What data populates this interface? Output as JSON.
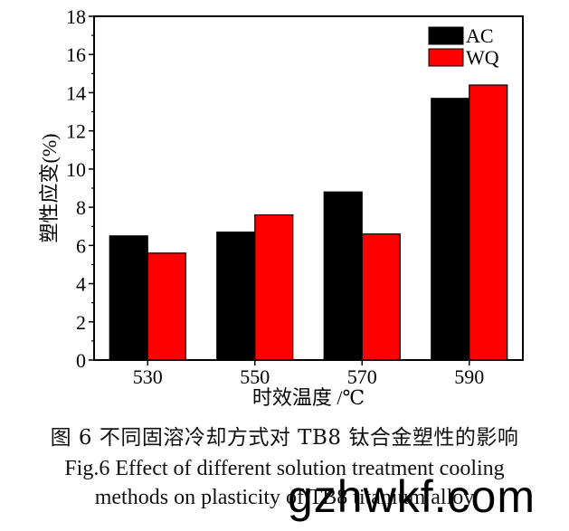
{
  "chart_data": {
    "type": "bar",
    "categories": [
      "530",
      "550",
      "570",
      "590"
    ],
    "series": [
      {
        "name": "AC",
        "values": [
          6.5,
          6.7,
          8.8,
          13.7
        ]
      },
      {
        "name": "WQ",
        "values": [
          5.6,
          7.6,
          6.6,
          14.4
        ]
      }
    ],
    "xlabel": "时效温度 /℃",
    "ylabel": "塑性应变(%)",
    "ylim": [
      0,
      18
    ],
    "yticks": [
      0,
      2,
      4,
      6,
      8,
      10,
      12,
      14,
      16,
      18
    ],
    "grid": false,
    "legend_position": "top-right",
    "colors": {
      "AC": "#000000",
      "WQ": "#ff0000"
    }
  },
  "caption": {
    "zh": "图 6  不同固溶冷却方式对 TB8 钛合金塑性的影响",
    "en_line1": "Fig.6  Effect of different solution treatment cooling",
    "en_line2": "methods on plasticity of TB8 titanium alloy"
  },
  "watermark": "gzhwkf.com"
}
